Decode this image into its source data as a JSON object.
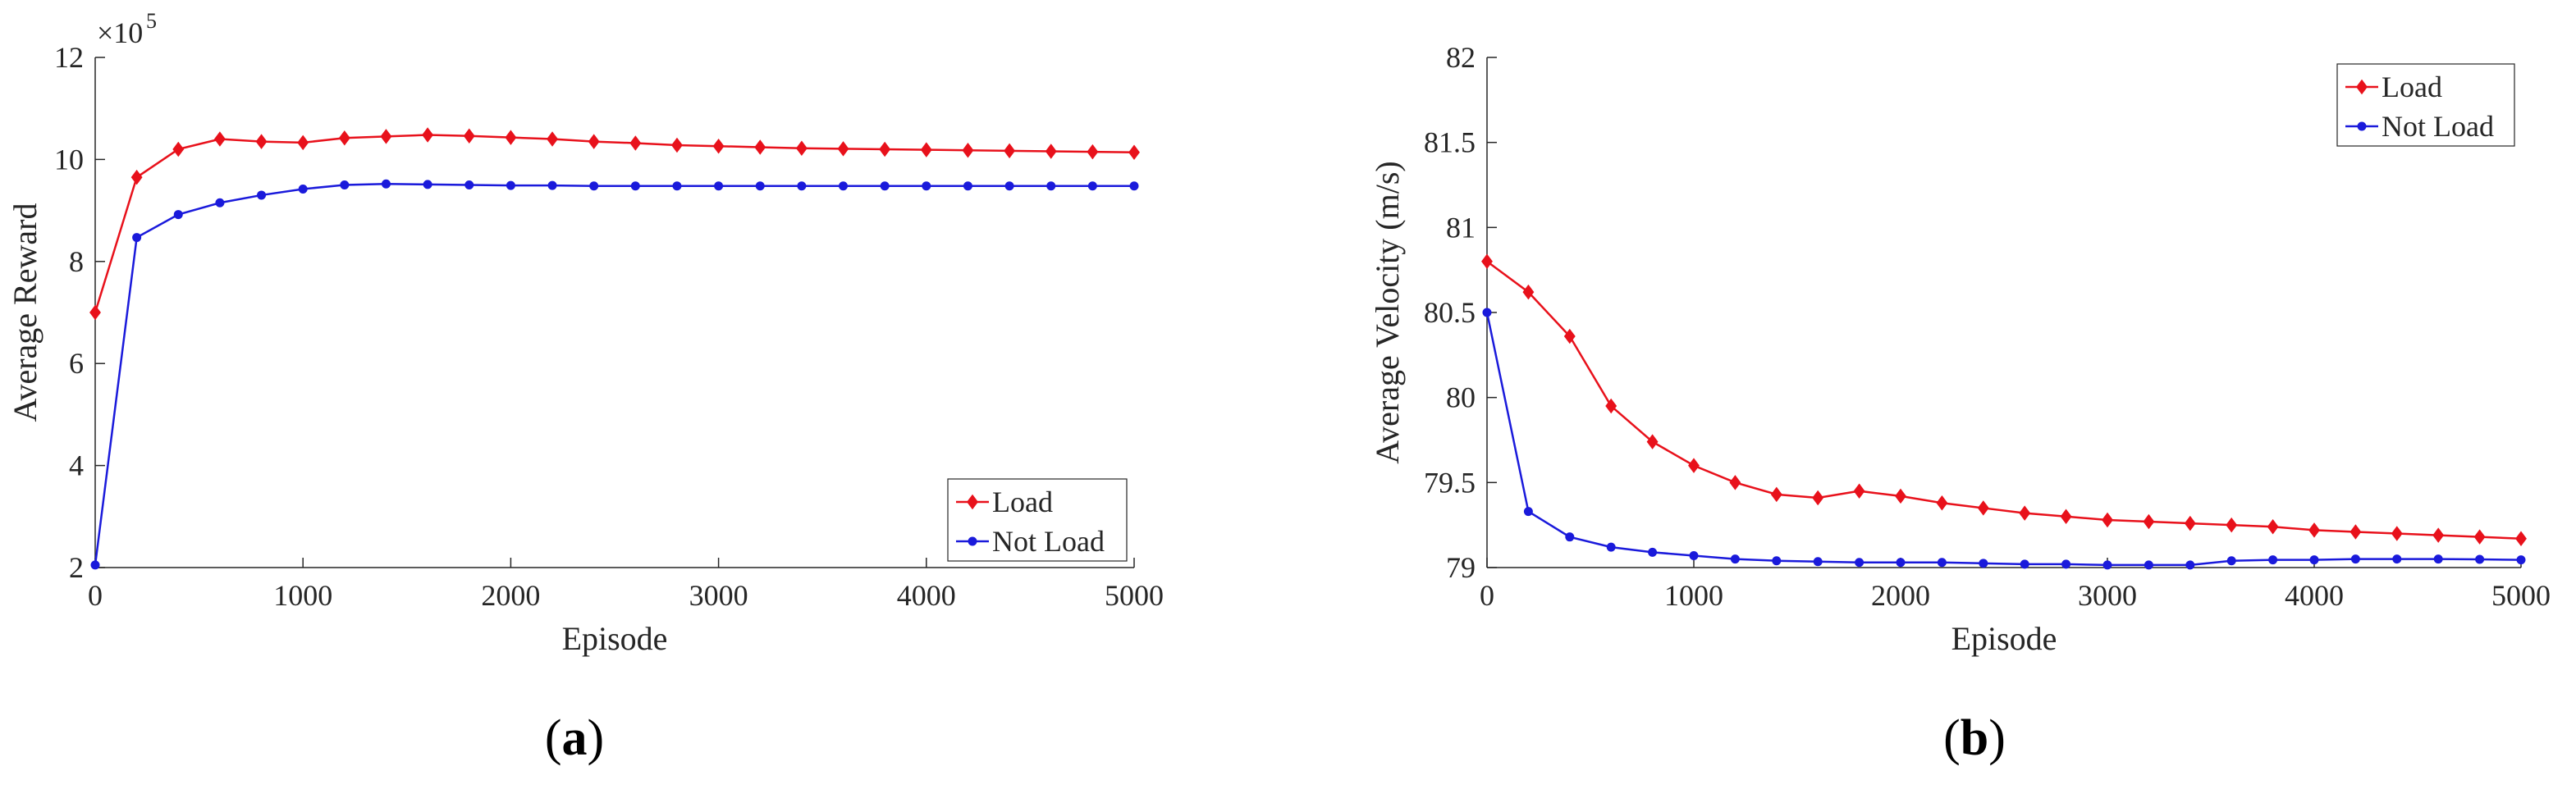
{
  "chart_data": [
    {
      "type": "line",
      "panel_label": "a",
      "title": "",
      "xlabel": "Episode",
      "ylabel": "Average Reward",
      "y_multiplier": "×10",
      "y_exponent": "5",
      "xlim": [
        0,
        5000
      ],
      "ylim": [
        2,
        12
      ],
      "xticks": [
        0,
        1000,
        2000,
        3000,
        4000,
        5000
      ],
      "yticks": [
        2,
        4,
        6,
        8,
        10,
        12
      ],
      "grid": false,
      "legend_position": "bottom-right",
      "x": [
        0,
        200,
        400,
        600,
        800,
        1000,
        1200,
        1400,
        1600,
        1800,
        2000,
        2200,
        2400,
        2600,
        2800,
        3000,
        3200,
        3400,
        3600,
        3800,
        4000,
        4200,
        4400,
        4600,
        4800,
        5000
      ],
      "series": [
        {
          "name": "Load",
          "color": "#e8111b",
          "marker": "diamond",
          "values": [
            7.0,
            9.65,
            10.2,
            10.4,
            10.35,
            10.33,
            10.42,
            10.45,
            10.48,
            10.46,
            10.43,
            10.4,
            10.35,
            10.32,
            10.28,
            10.26,
            10.24,
            10.22,
            10.21,
            10.2,
            10.19,
            10.18,
            10.17,
            10.16,
            10.15,
            10.14
          ]
        },
        {
          "name": "Not Load",
          "color": "#1a1adb",
          "marker": "dot",
          "values": [
            2.05,
            8.47,
            8.92,
            9.15,
            9.3,
            9.42,
            9.5,
            9.52,
            9.51,
            9.5,
            9.49,
            9.49,
            9.48,
            9.48,
            9.48,
            9.48,
            9.48,
            9.48,
            9.48,
            9.48,
            9.48,
            9.48,
            9.48,
            9.48,
            9.48,
            9.48
          ]
        }
      ]
    },
    {
      "type": "line",
      "panel_label": "b",
      "title": "",
      "xlabel": "Episode",
      "ylabel": "Average Velocity (m/s)",
      "xlim": [
        0,
        5000
      ],
      "ylim": [
        79,
        82
      ],
      "xticks": [
        0,
        1000,
        2000,
        3000,
        4000,
        5000
      ],
      "yticks": [
        79,
        79.5,
        80,
        80.5,
        81,
        81.5,
        82
      ],
      "grid": false,
      "legend_position": "top-right",
      "x": [
        0,
        200,
        400,
        600,
        800,
        1000,
        1200,
        1400,
        1600,
        1800,
        2000,
        2200,
        2400,
        2600,
        2800,
        3000,
        3200,
        3400,
        3600,
        3800,
        4000,
        4200,
        4400,
        4600,
        4800,
        5000
      ],
      "series": [
        {
          "name": "Load",
          "color": "#e8111b",
          "marker": "diamond",
          "values": [
            80.8,
            80.62,
            80.36,
            79.95,
            79.74,
            79.6,
            79.5,
            79.43,
            79.41,
            79.45,
            79.42,
            79.38,
            79.35,
            79.32,
            79.3,
            79.28,
            79.27,
            79.26,
            79.25,
            79.24,
            79.22,
            79.21,
            79.2,
            79.19,
            79.18,
            79.17
          ]
        },
        {
          "name": "Not Load",
          "color": "#1a1adb",
          "marker": "dot",
          "values": [
            80.5,
            79.33,
            79.18,
            79.12,
            79.09,
            79.07,
            79.05,
            79.04,
            79.035,
            79.03,
            79.03,
            79.03,
            79.025,
            79.02,
            79.02,
            79.015,
            79.015,
            79.015,
            79.04,
            79.045,
            79.045,
            79.05,
            79.05,
            79.05,
            79.048,
            79.045
          ]
        }
      ]
    }
  ],
  "captions": [
    {
      "open": "(",
      "label": "a",
      "close": ")"
    },
    {
      "open": "(",
      "label": "b",
      "close": ")"
    }
  ]
}
